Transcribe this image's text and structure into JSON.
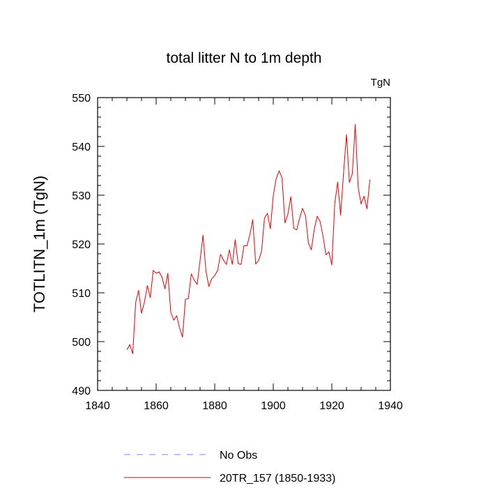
{
  "chart_data": {
    "type": "line",
    "title": "total litter N to 1m depth",
    "units_label": "TgN",
    "xlabel": "",
    "ylabel": "TOTLITN_1m  (TgN)",
    "xlim": [
      1840,
      1940
    ],
    "ylim": [
      490,
      550
    ],
    "x_ticks": [
      1840,
      1860,
      1880,
      1900,
      1920,
      1940
    ],
    "y_ticks": [
      490,
      500,
      510,
      520,
      530,
      540,
      550
    ],
    "x_tick_labels": [
      "1840",
      "1860",
      "1880",
      "1900",
      "1920",
      "1940"
    ],
    "y_tick_labels": [
      "490",
      "500",
      "510",
      "520",
      "530",
      "540",
      "550"
    ],
    "legend_position": "bottom",
    "series": [
      {
        "name": "No Obs",
        "color": "#8080ff",
        "style": "dashed",
        "x": [],
        "values": []
      },
      {
        "name": "20TR_157 (1850-1933)",
        "color": "#e00000",
        "style": "solid",
        "x": [
          1850,
          1851,
          1852,
          1853,
          1854,
          1855,
          1856,
          1857,
          1858,
          1859,
          1860,
          1861,
          1862,
          1863,
          1864,
          1865,
          1866,
          1867,
          1868,
          1869,
          1870,
          1871,
          1872,
          1873,
          1874,
          1875,
          1876,
          1877,
          1878,
          1879,
          1880,
          1881,
          1882,
          1883,
          1884,
          1885,
          1886,
          1887,
          1888,
          1889,
          1890,
          1891,
          1892,
          1893,
          1894,
          1895,
          1896,
          1897,
          1898,
          1899,
          1900,
          1901,
          1902,
          1903,
          1904,
          1905,
          1906,
          1907,
          1908,
          1909,
          1910,
          1911,
          1912,
          1913,
          1914,
          1915,
          1916,
          1917,
          1918,
          1919,
          1920,
          1921,
          1922,
          1923,
          1924,
          1925,
          1926,
          1927,
          1928,
          1929,
          1930,
          1931,
          1932,
          1933
        ],
        "values": [
          498.3,
          499.4,
          497.5,
          508.0,
          510.5,
          505.8,
          508.1,
          511.5,
          509.0,
          514.6,
          514.0,
          514.3,
          513.2,
          510.8,
          514.0,
          506.0,
          504.4,
          505.3,
          502.8,
          500.9,
          508.7,
          508.8,
          513.9,
          512.6,
          511.7,
          516.6,
          521.8,
          514.5,
          511.3,
          512.9,
          513.5,
          514.6,
          517.9,
          516.7,
          515.8,
          518.8,
          515.8,
          520.9,
          516.0,
          515.8,
          519.7,
          519.6,
          521.9,
          525.0,
          515.9,
          516.6,
          518.5,
          525.3,
          526.3,
          523.1,
          529.9,
          533.4,
          535.0,
          533.5,
          524.3,
          526.1,
          529.7,
          523.2,
          522.9,
          525.3,
          527.3,
          525.8,
          520.2,
          518.8,
          523.0,
          525.7,
          524.6,
          521.6,
          517.8,
          518.4,
          515.7,
          528.3,
          532.7,
          525.9,
          534.5,
          542.4,
          532.6,
          534.4,
          544.5,
          531.6,
          528.2,
          529.8,
          527.2,
          533.2
        ]
      }
    ]
  }
}
